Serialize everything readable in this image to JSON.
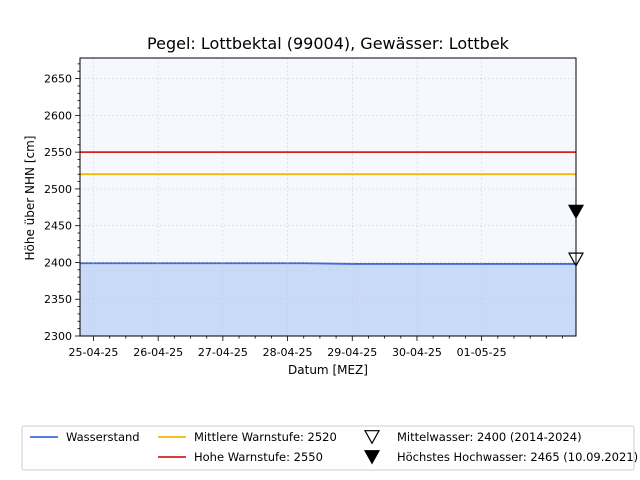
{
  "chart_data": {
    "type": "line",
    "title": "Pegel:  Lottbektal (99004), Gewässer:  Lottbek",
    "xlabel": "Datum [MEZ]",
    "ylabel": "Höhe über NHN [cm]",
    "ylim": [
      2300,
      2678
    ],
    "xlim": [
      "2025-04-24T19:00",
      "2025-05-02T11:00"
    ],
    "yticks": [
      2300,
      2350,
      2400,
      2450,
      2500,
      2550,
      2600,
      2650
    ],
    "xticks": [
      {
        "t": "2025-04-25T00:00",
        "label": "25-04-25"
      },
      {
        "t": "2025-04-26T00:00",
        "label": "26-04-25"
      },
      {
        "t": "2025-04-27T00:00",
        "label": "27-04-25"
      },
      {
        "t": "2025-04-28T00:00",
        "label": "28-04-25"
      },
      {
        "t": "2025-04-29T00:00",
        "label": "29-04-25"
      },
      {
        "t": "2025-04-30T00:00",
        "label": "30-04-25"
      },
      {
        "t": "2025-05-01T00:00",
        "label": "01-05-25"
      }
    ],
    "grid": true,
    "legend_position": "bottom",
    "series": [
      {
        "name": "Wasserstand",
        "color": "#3a6fd8",
        "fill": "#c9d9f8",
        "x": [
          "2025-04-24T19:00",
          "2025-04-25T12:00",
          "2025-04-26T12:00",
          "2025-04-27T12:00",
          "2025-04-28T00:00",
          "2025-04-28T06:00",
          "2025-04-29T00:00",
          "2025-04-30T00:00",
          "2025-05-01T00:00",
          "2025-05-02T11:00"
        ],
        "y": [
          2399,
          2399,
          2399,
          2399,
          2399,
          2399,
          2398,
          2398,
          2398,
          2398
        ]
      }
    ],
    "thresholds": [
      {
        "name": "Mittlere Warnstufe: 2520",
        "value": 2520,
        "color": "#f5b700"
      },
      {
        "name": "Hohe Warnstufe: 2550",
        "value": 2550,
        "color": "#d62020"
      }
    ],
    "markers": [
      {
        "name": "Mittelwasser: 2400 (2014-2024)",
        "value": 2400,
        "symbol": "triangle-down-open"
      },
      {
        "name": "Höchstes Hochwasser: 2465 (10.09.2021)",
        "value": 2465,
        "symbol": "triangle-down-filled"
      }
    ],
    "colors": {
      "plot_background": "#f7f8fe",
      "grid": "#c8c8d0"
    }
  }
}
